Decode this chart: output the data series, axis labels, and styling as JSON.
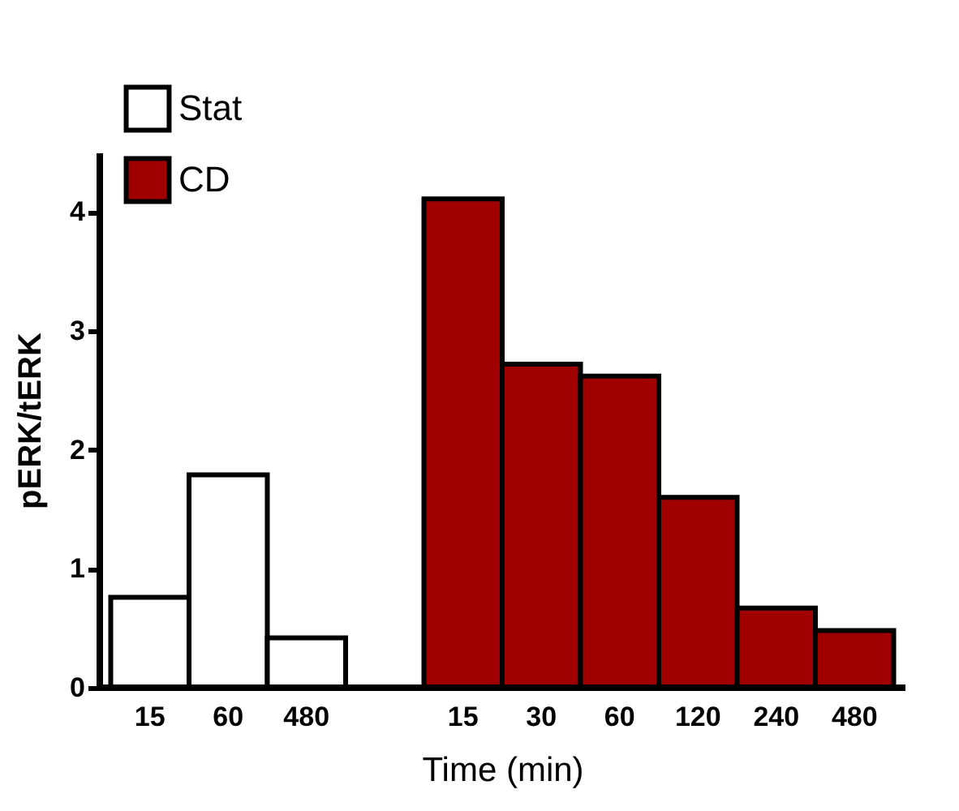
{
  "chart_data": {
    "type": "bar",
    "xlabel": "Time (min)",
    "ylabel": "pERK/tERK",
    "categories": [
      "15",
      "60",
      "480",
      null,
      "15",
      "30",
      "60",
      "120",
      "240",
      "480"
    ],
    "series": [
      {
        "name": "Stat",
        "color": "#ffffff",
        "values": [
          0.76,
          1.79,
          0.42,
          null,
          null,
          null,
          null,
          null,
          null,
          null
        ]
      },
      {
        "name": "CD",
        "color": "#a00000",
        "values": [
          null,
          null,
          null,
          null,
          4.11,
          2.72,
          2.62,
          1.6,
          0.67,
          0.48
        ]
      }
    ],
    "ylim": [
      0,
      4.5
    ],
    "yticks": [
      0,
      1,
      2,
      3,
      4
    ],
    "grid": false,
    "legend": "top left"
  }
}
